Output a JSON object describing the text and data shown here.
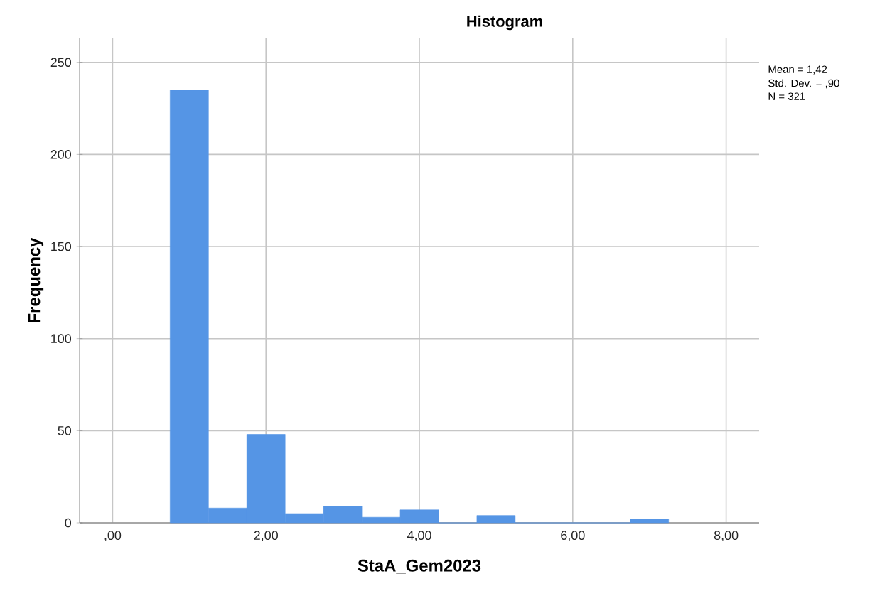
{
  "chart_data": {
    "type": "histogram",
    "title": "Histogram",
    "xlabel": "StaA_Gem2023",
    "ylabel": "Frequency",
    "bins": [
      0.75,
      1.25,
      1.75,
      2.25,
      2.75,
      3.25,
      3.75,
      4.25,
      4.75,
      5.25,
      5.75,
      6.25,
      6.75,
      7.25
    ],
    "values": [
      235,
      8,
      48,
      5,
      9,
      3,
      7,
      0,
      4,
      0,
      0,
      0,
      2
    ],
    "color": "#5595e5",
    "xlim": [
      -0.43,
      8.43
    ],
    "ylim": [
      0,
      263
    ],
    "xticks": [
      {
        "value": 0,
        "label": ",00"
      },
      {
        "value": 2,
        "label": "2,00"
      },
      {
        "value": 4,
        "label": "4,00"
      },
      {
        "value": 6,
        "label": "6,00"
      },
      {
        "value": 8,
        "label": "8,00"
      }
    ],
    "yticks": [
      0,
      50,
      100,
      150,
      200,
      250
    ],
    "grid": true,
    "annotations": [
      "Mean = 1,42",
      "Std. Dev. = ,90",
      "N = 321"
    ]
  }
}
